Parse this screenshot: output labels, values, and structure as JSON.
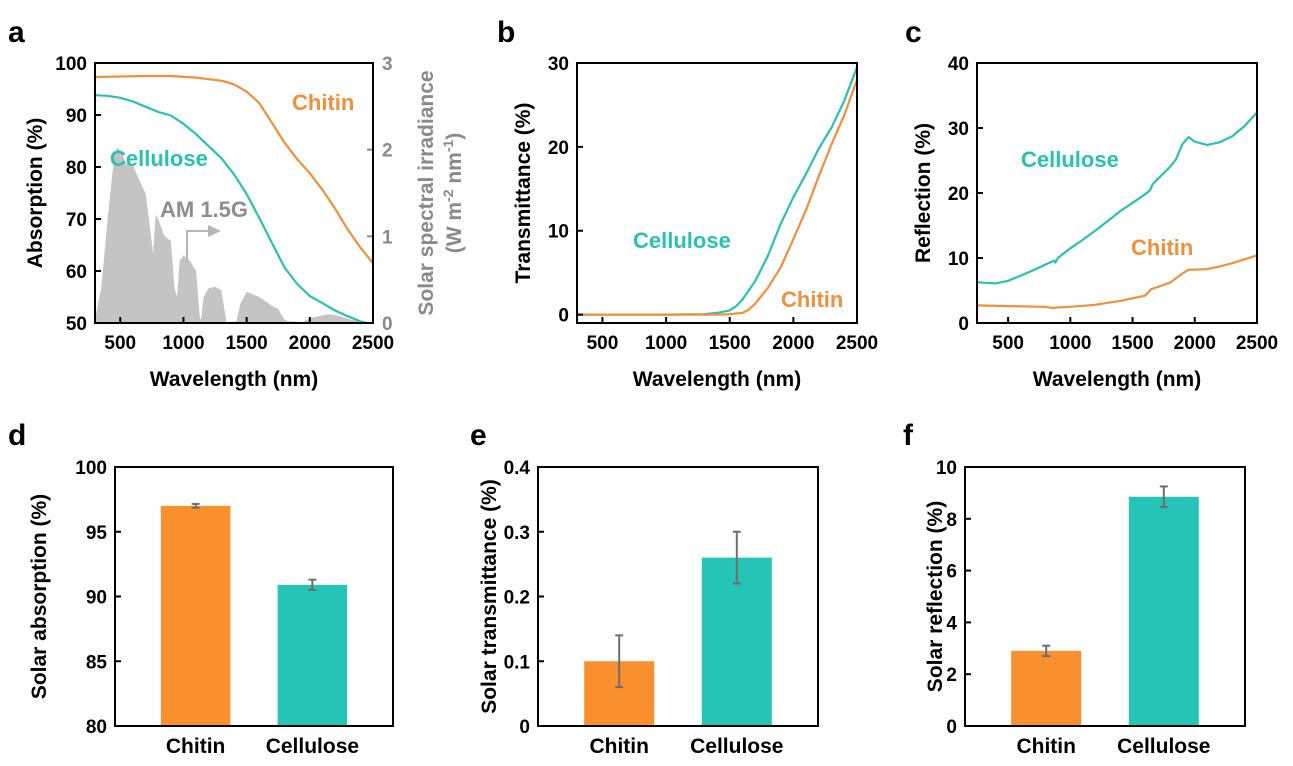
{
  "colors": {
    "chitin": "#f0903a",
    "cellulose": "#29c1b2",
    "chitin_bar": "#fa8f2e",
    "cellulose_bar": "#26c4b6",
    "am_fill": "#c4c4c4",
    "secondary_axis": "#8a8a8a",
    "error_bar": "#6e6e6e"
  },
  "chart_data": [
    {
      "id": "a",
      "type": "line",
      "letter": "a",
      "xlabel": "Wavelength (nm)",
      "ylabel": "Absorption (%)",
      "xlim": [
        300,
        2500
      ],
      "ylim": [
        50,
        100
      ],
      "xticks": [
        500,
        1000,
        1500,
        2000,
        2500
      ],
      "yticks": [
        50,
        60,
        70,
        80,
        90,
        100
      ],
      "y2label": "Solar spectral irradiance (W m-2 nm-1)",
      "y2label_parts": {
        "main": "Solar spectral irradiance",
        "open": "(W m",
        "sup1": "-2",
        "mid": " nm",
        "sup2": "-1",
        "close": ")"
      },
      "y2lim": [
        0,
        3
      ],
      "y2ticks": [
        0,
        1,
        2,
        3
      ],
      "series": [
        {
          "name": "Chitin",
          "label": "Chitin",
          "color_key": "chitin",
          "x": [
            300,
            500,
            700,
            900,
            1100,
            1300,
            1400,
            1500,
            1600,
            1700,
            1800,
            1900,
            2000,
            2100,
            2200,
            2300,
            2400,
            2500
          ],
          "y": [
            97.3,
            97.4,
            97.5,
            97.5,
            97.2,
            96.6,
            95.9,
            94.5,
            92.3,
            88.5,
            84.7,
            81.5,
            78.8,
            75.6,
            72.0,
            68.0,
            64.5,
            61.5
          ]
        },
        {
          "name": "Cellulose",
          "label": "Cellulose",
          "color_key": "cellulose",
          "x": [
            300,
            400,
            500,
            600,
            700,
            800,
            900,
            1000,
            1100,
            1200,
            1300,
            1400,
            1500,
            1600,
            1700,
            1800,
            1900,
            2000,
            2100,
            2200,
            2300,
            2400,
            2500
          ],
          "y": [
            93.8,
            93.7,
            93.3,
            92.6,
            91.6,
            90.6,
            89.9,
            88.3,
            86.3,
            84.0,
            81.7,
            78.6,
            74.8,
            70.2,
            65.4,
            60.7,
            57.5,
            55.2,
            53.8,
            52.4,
            51.3,
            50.3,
            49.7
          ]
        }
      ],
      "am15g": {
        "label": "AM 1.5G",
        "axis": "y2",
        "x": [
          300,
          350,
          400,
          450,
          480,
          500,
          550,
          600,
          650,
          700,
          720,
          760,
          780,
          800,
          850,
          900,
          930,
          950,
          970,
          1000,
          1050,
          1100,
          1130,
          1140,
          1160,
          1200,
          1250,
          1300,
          1340,
          1360,
          1420,
          1450,
          1500,
          1550,
          1600,
          1650,
          1700,
          1750,
          1800,
          1830,
          1950,
          2000,
          2050,
          2100,
          2150,
          2200,
          2250,
          2300,
          2350,
          2400,
          2450,
          2500
        ],
        "y": [
          0.05,
          0.4,
          1.2,
          1.9,
          2.03,
          1.98,
          1.84,
          1.82,
          1.65,
          1.5,
          1.28,
          0.8,
          1.25,
          1.2,
          1.0,
          0.95,
          0.4,
          0.3,
          0.72,
          0.78,
          0.72,
          0.6,
          0.05,
          0.05,
          0.3,
          0.4,
          0.42,
          0.38,
          0.01,
          0.01,
          0.02,
          0.22,
          0.36,
          0.33,
          0.3,
          0.25,
          0.2,
          0.16,
          0.04,
          0.02,
          0.01,
          0.06,
          0.07,
          0.09,
          0.1,
          0.09,
          0.07,
          0.05,
          0.03,
          0.02,
          0.01,
          0.01
        ]
      }
    },
    {
      "id": "b",
      "type": "line",
      "letter": "b",
      "xlabel": "Wavelength (nm)",
      "ylabel": "Transmittance (%)",
      "xlim": [
        300,
        2500
      ],
      "ylim": [
        -1,
        30
      ],
      "xticks": [
        500,
        1000,
        1500,
        2000,
        2500
      ],
      "yticks": [
        0,
        10,
        20,
        30
      ],
      "series": [
        {
          "name": "Cellulose",
          "label": "Cellulose",
          "color_key": "cellulose",
          "x": [
            300,
            1000,
            1300,
            1400,
            1500,
            1550,
            1600,
            1700,
            1800,
            1900,
            2000,
            2100,
            2200,
            2300,
            2400,
            2500
          ],
          "y": [
            0.0,
            0.0,
            0.05,
            0.2,
            0.5,
            1.0,
            1.8,
            4.0,
            7.0,
            10.8,
            14.0,
            16.8,
            19.8,
            22.3,
            25.5,
            29.5
          ]
        },
        {
          "name": "Chitin",
          "label": "Chitin",
          "color_key": "chitin",
          "x": [
            300,
            1000,
            1400,
            1500,
            1600,
            1650,
            1700,
            1800,
            1900,
            2000,
            2100,
            2200,
            2300,
            2400,
            2500
          ],
          "y": [
            0.0,
            0.0,
            0.0,
            0.05,
            0.2,
            0.6,
            1.3,
            3.2,
            5.6,
            9.0,
            12.5,
            16.5,
            20.3,
            23.8,
            28.0
          ]
        }
      ]
    },
    {
      "id": "c",
      "type": "line",
      "letter": "c",
      "xlabel": "Wavelength (nm)",
      "ylabel": "Reflection (%)",
      "xlim": [
        250,
        2500
      ],
      "ylim": [
        0,
        40
      ],
      "xticks": [
        500,
        1000,
        1500,
        2000,
        2500
      ],
      "yticks": [
        0,
        10,
        20,
        30,
        40
      ],
      "series": [
        {
          "name": "Cellulose",
          "label": "Cellulose",
          "color_key": "cellulose",
          "x": [
            250,
            300,
            400,
            500,
            600,
            700,
            800,
            870,
            880,
            900,
            1000,
            1100,
            1200,
            1300,
            1400,
            1500,
            1600,
            1640,
            1660,
            1700,
            1800,
            1850,
            1900,
            1950,
            2000,
            2100,
            2200,
            2300,
            2400,
            2500
          ],
          "y": [
            6.3,
            6.2,
            6.1,
            6.5,
            7.3,
            8.1,
            9.0,
            9.6,
            9.3,
            10.0,
            11.5,
            12.8,
            14.2,
            15.7,
            17.2,
            18.5,
            19.8,
            20.4,
            21.3,
            22.1,
            24.0,
            25.2,
            27.5,
            28.6,
            27.9,
            27.4,
            27.8,
            28.7,
            30.3,
            32.4
          ]
        },
        {
          "name": "Chitin",
          "label": "Chitin",
          "color_key": "chitin",
          "x": [
            250,
            500,
            800,
            860,
            900,
            1000,
            1200,
            1400,
            1600,
            1650,
            1800,
            1900,
            1950,
            2000,
            2100,
            2200,
            2300,
            2400,
            2500
          ],
          "y": [
            2.7,
            2.6,
            2.5,
            2.3,
            2.4,
            2.5,
            2.8,
            3.4,
            4.2,
            5.2,
            6.2,
            7.6,
            8.2,
            8.2,
            8.3,
            8.7,
            9.2,
            9.8,
            10.4
          ]
        }
      ]
    },
    {
      "id": "d",
      "type": "bar",
      "letter": "d",
      "ylabel": "Solar absorption (%)",
      "categories": [
        "Chitin",
        "Cellulose"
      ],
      "values": [
        97.0,
        90.9
      ],
      "errors": [
        0.15,
        0.4
      ],
      "ylim": [
        80,
        100
      ],
      "yticks": [
        80,
        85,
        90,
        95,
        100
      ]
    },
    {
      "id": "e",
      "type": "bar",
      "letter": "e",
      "ylabel": "Solar transmittance (%)",
      "categories": [
        "Chitin",
        "Cellulose"
      ],
      "values": [
        0.1,
        0.26
      ],
      "errors": [
        0.04,
        0.04
      ],
      "ylim": [
        0,
        0.4
      ],
      "yticks": [
        0,
        0.1,
        0.2,
        0.3,
        0.4
      ]
    },
    {
      "id": "f",
      "type": "bar",
      "letter": "f",
      "ylabel": "Solar reflection (%)",
      "categories": [
        "Chitin",
        "Cellulose"
      ],
      "values": [
        2.9,
        8.85
      ],
      "errors": [
        0.2,
        0.4
      ],
      "ylim": [
        0,
        10
      ],
      "yticks": [
        0,
        2,
        4,
        6,
        8,
        10
      ]
    }
  ]
}
